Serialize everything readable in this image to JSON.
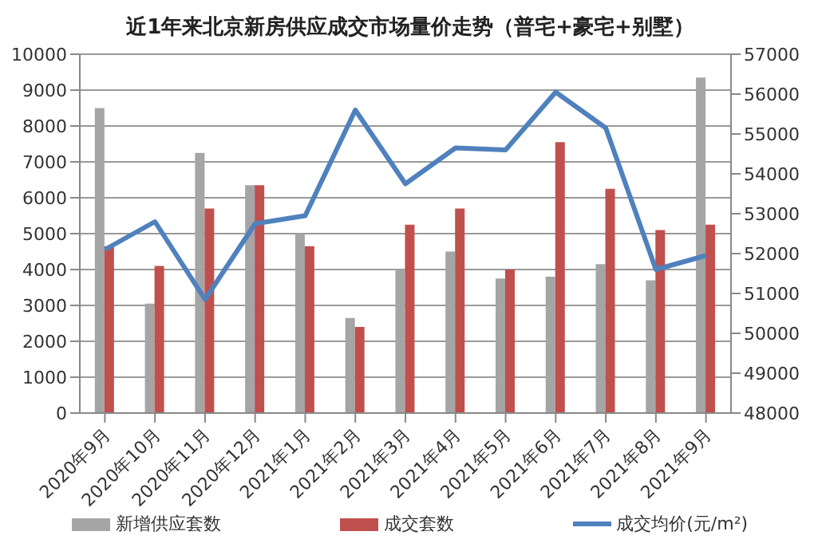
{
  "chart_data": {
    "type": "bar",
    "title": "近1年来北京新房供应成交市场量价走势（普宅+豪宅+别墅）",
    "categories": [
      "2020年9月",
      "2020年10月",
      "2020年11月",
      "2020年12月",
      "2021年1月",
      "2021年2月",
      "2021年3月",
      "2021年4月",
      "2021年5月",
      "2021年6月",
      "2021年7月",
      "2021年8月",
      "2021年9月"
    ],
    "series": [
      {
        "name": "新增供应套数",
        "color": "#a5a5a5",
        "values": [
          8500,
          3050,
          7250,
          6350,
          5000,
          2650,
          4000,
          4500,
          3750,
          3800,
          4150,
          3700,
          9350
        ]
      },
      {
        "name": "成交套数",
        "color": "#c0504d",
        "values": [
          4650,
          4100,
          5700,
          6350,
          4650,
          2400,
          5250,
          5700,
          4000,
          7550,
          6250,
          5100,
          5250
        ]
      },
      {
        "name": "成交均价(元/m²)",
        "type": "line",
        "axis": "y2",
        "color": "#4f81bd",
        "values": [
          52100,
          52800,
          50850,
          52750,
          52950,
          55600,
          53750,
          54650,
          54600,
          56050,
          55150,
          51600,
          51950
        ]
      }
    ],
    "ylim": [
      0,
      10000
    ],
    "yticks": [
      0,
      1000,
      2000,
      3000,
      4000,
      5000,
      6000,
      7000,
      8000,
      9000,
      10000
    ],
    "y2lim": [
      48000,
      57000
    ],
    "y2ticks": [
      48000,
      49000,
      50000,
      51000,
      52000,
      53000,
      54000,
      55000,
      56000,
      57000
    ],
    "grid": "y",
    "legend": "bottom",
    "marker": "none"
  }
}
